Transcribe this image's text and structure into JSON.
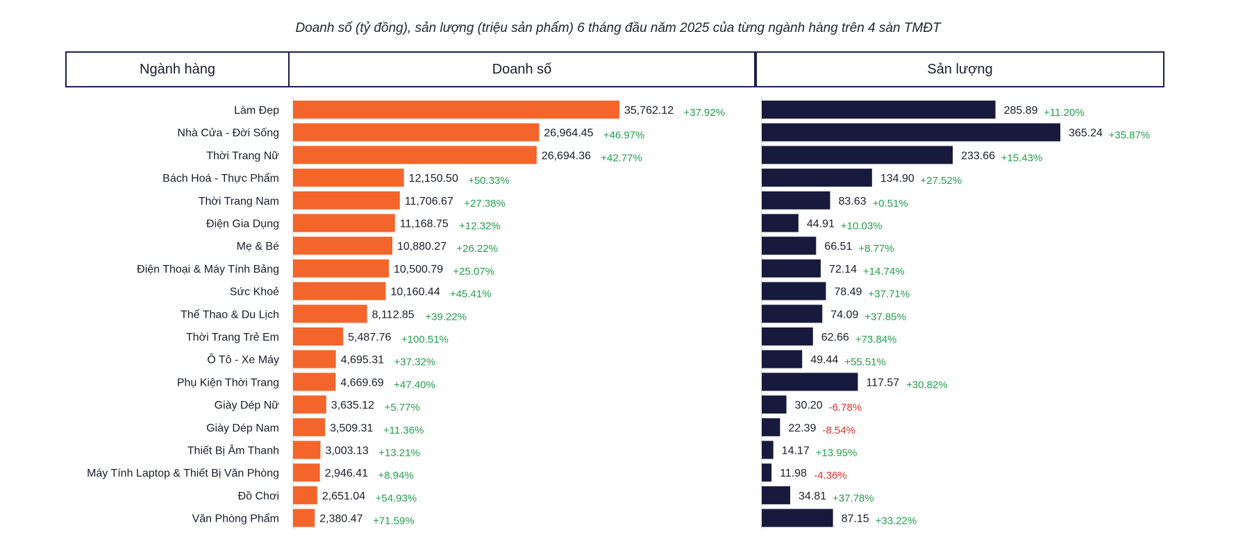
{
  "title": "Doanh số (tỷ đồng), sản lượng (triệu sản phẩm) 6 tháng đầu năm 2025 của từng ngành hàng trên 4 sàn TMĐT",
  "headers": {
    "category": "Ngành hàng",
    "revenue": "Doanh số",
    "volume": "Sản lượng"
  },
  "colors": {
    "revenue_bar": "#f4652b",
    "volume_bar": "#181a3d",
    "positive": "#22a04b",
    "negative": "#e0302f",
    "header_border": "#1a1f4d"
  },
  "chart_data": [
    {
      "type": "bar",
      "orientation": "horizontal",
      "title": "Doanh số",
      "categories": [
        "Làm Đẹp",
        "Nhà Cửa - Đời Sống",
        "Thời Trang Nữ",
        "Bách Hoá - Thực Phẩm",
        "Thời Trang Nam",
        "Điện Gia Dụng",
        "Mẹ & Bé",
        "Điện Thoại & Máy Tính Bảng",
        "Sức Khoẻ",
        "Thể Thao & Du Lịch",
        "Thời Trang Trẻ Em",
        "Ô Tô - Xe Máy",
        "Phụ Kiện Thời Trang",
        "Giày Dép Nữ",
        "Giày Dép Nam",
        "Thiết Bị Âm Thanh",
        "Máy Tính  Laptop & Thiết Bị Văn Phòng",
        "Đồ Chơi",
        "Văn Phòng Phẩm"
      ],
      "values": [
        35762.12,
        26964.45,
        26694.36,
        12150.5,
        11706.67,
        11168.75,
        10880.27,
        10500.79,
        10160.44,
        8112.85,
        5487.76,
        4695.31,
        4669.69,
        3635.12,
        3509.31,
        3003.13,
        2946.41,
        2651.04,
        2380.47
      ],
      "value_labels": [
        "35,762.12",
        "26,964.45",
        "26,694.36",
        "12,150.50",
        "11,706.67",
        "11,168.75",
        "10,880.27",
        "10,500.79",
        "10,160.44",
        "8,112.85",
        "5,487.76",
        "4,695.31",
        "4,669.69",
        "3,635.12",
        "3,509.31",
        "3,003.13",
        "2,946.41",
        "2,651.04",
        "2,380.47"
      ],
      "growth": [
        "+37.92%",
        "+46.97%",
        "+42.77%",
        "+50.33%",
        "+27.38%",
        "+12.32%",
        "+26.22%",
        "+25.07%",
        "+45.41%",
        "+39.22%",
        "+100.51%",
        "+37.32%",
        "+47.40%",
        "+5.77%",
        "+11.36%",
        "+13.21%",
        "+8.94%",
        "+54.93%",
        "+71.59%"
      ]
    },
    {
      "type": "bar",
      "orientation": "horizontal",
      "title": "Sản lượng",
      "categories": [
        "Làm Đẹp",
        "Nhà Cửa - Đời Sống",
        "Thời Trang Nữ",
        "Bách Hoá - Thực Phẩm",
        "Thời Trang Nam",
        "Điện Gia Dụng",
        "Mẹ & Bé",
        "Điện Thoại & Máy Tính Bảng",
        "Sức Khoẻ",
        "Thể Thao & Du Lịch",
        "Thời Trang Trẻ Em",
        "Ô Tô - Xe Máy",
        "Phụ Kiện Thời Trang",
        "Giày Dép Nữ",
        "Giày Dép Nam",
        "Thiết Bị Âm Thanh",
        "Máy Tính  Laptop & Thiết Bị Văn Phòng",
        "Đồ Chơi",
        "Văn Phòng Phẩm"
      ],
      "values": [
        285.89,
        365.24,
        233.66,
        134.9,
        83.63,
        44.91,
        66.51,
        72.14,
        78.49,
        74.09,
        62.66,
        49.44,
        117.57,
        30.2,
        22.39,
        14.17,
        11.98,
        34.81,
        87.15
      ],
      "value_labels": [
        "285.89",
        "365.24",
        "233.66",
        "134.90",
        "83.63",
        "44.91",
        "66.51",
        "72.14",
        "78.49",
        "74.09",
        "62.66",
        "49.44",
        "117.57",
        "30.20",
        "22.39",
        "14.17",
        "11.98",
        "34.81",
        "87.15"
      ],
      "growth": [
        "+11.20%",
        "+35.87%",
        "+15.43%",
        "+27.52%",
        "+0.51%",
        "+10.03%",
        "+8.77%",
        "+14.74%",
        "+37.71%",
        "+37.85%",
        "+73.84%",
        "+55.51%",
        "+30.82%",
        "-6.78%",
        "-8.54%",
        "+13.95%",
        "-4.36%",
        "+37.78%",
        "+33.22%"
      ]
    }
  ]
}
